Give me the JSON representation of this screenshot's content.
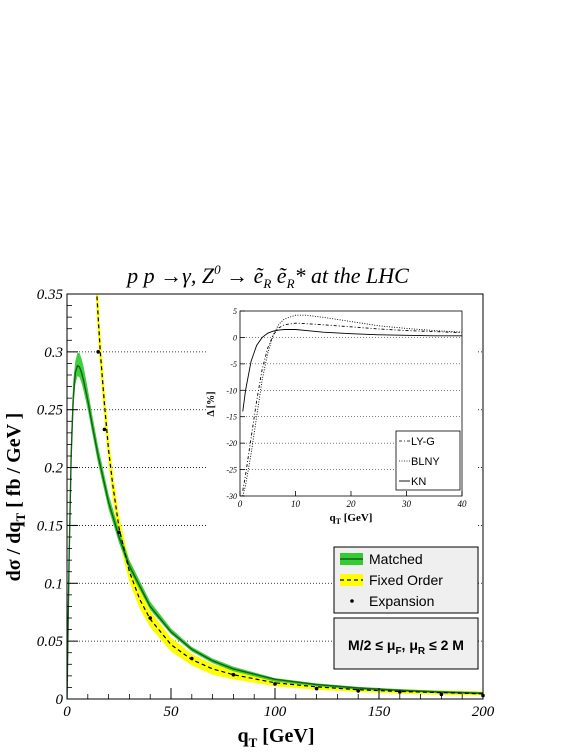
{
  "chart_data": [
    {
      "type": "line",
      "title": {
        "pre": "p p  →γ, Z",
        "sup0": "0",
        "mid": " → ",
        "e1": "ẽ",
        "sub1": "R",
        "e2": "ẽ",
        "sub2": "R",
        "post": "* at the LHC"
      },
      "xlabel": {
        "main": "q",
        "sub": "T",
        "rest": " [GeV]"
      },
      "ylabel": {
        "pre": "dσ / dq",
        "sub": "T",
        "rest": " [ fb / GeV ]"
      },
      "xlim": [
        0,
        200
      ],
      "ylim": [
        0,
        0.35
      ],
      "xticks": [
        0,
        50,
        100,
        150,
        200
      ],
      "xtick_labels": [
        "0",
        "50",
        "100",
        "150",
        "200"
      ],
      "yticks": [
        0,
        0.05,
        0.1,
        0.15,
        0.2,
        0.25,
        0.3,
        0.35
      ],
      "ytick_labels": [
        "0",
        "0.05",
        "0.1",
        "0.15",
        "0.2",
        "0.25",
        "0.3",
        "0.35"
      ],
      "grid": "horizontal dotted",
      "legend": {
        "placement": "right",
        "entries": [
          "Matched",
          "Fixed Order",
          "Expansion"
        ]
      },
      "scale_box": {
        "lead": "M/2",
        "le1": "≤",
        "mu": "μ",
        "mu_sub_F": "F",
        "comma": ", μ",
        "mu_sub_R": "R",
        "le2": "≤",
        "tail": "2 M"
      },
      "series": [
        {
          "name": "Matched",
          "style": "solid line with green band",
          "color": "#1a5c1a",
          "band_color": "#33cc33",
          "x": [
            0,
            1,
            2,
            3,
            4,
            5,
            6,
            7,
            8,
            10,
            12,
            15,
            20,
            25,
            30,
            40,
            50,
            60,
            70,
            80,
            100,
            120,
            140,
            160,
            180,
            200
          ],
          "y": [
            0,
            0.12,
            0.21,
            0.26,
            0.282,
            0.288,
            0.287,
            0.282,
            0.275,
            0.258,
            0.238,
            0.21,
            0.17,
            0.14,
            0.115,
            0.08,
            0.058,
            0.043,
            0.033,
            0.026,
            0.017,
            0.0125,
            0.0095,
            0.0075,
            0.006,
            0.005
          ],
          "band_low": [
            0,
            0.1,
            0.2,
            0.25,
            0.272,
            0.279,
            0.278,
            0.273,
            0.266,
            0.25,
            0.231,
            0.203,
            0.164,
            0.135,
            0.111,
            0.077,
            0.056,
            0.041,
            0.031,
            0.024,
            0.015,
            0.011,
            0.008,
            0.0065,
            0.005,
            0.004
          ],
          "band_high": [
            0,
            0.14,
            0.23,
            0.275,
            0.292,
            0.299,
            0.299,
            0.294,
            0.287,
            0.268,
            0.247,
            0.218,
            0.177,
            0.146,
            0.12,
            0.084,
            0.061,
            0.045,
            0.035,
            0.028,
            0.018,
            0.0135,
            0.0105,
            0.0085,
            0.007,
            0.006
          ]
        },
        {
          "name": "Fixed Order",
          "style": "dashed line with yellow band",
          "color": "#000000",
          "band_color": "#ffff00",
          "x": [
            14,
            15,
            16,
            18,
            20,
            22,
            25,
            30,
            35,
            40,
            50,
            60,
            70,
            80,
            100,
            120,
            140,
            160,
            180,
            200
          ],
          "y": [
            0.36,
            0.33,
            0.3,
            0.255,
            0.215,
            0.185,
            0.148,
            0.11,
            0.086,
            0.069,
            0.047,
            0.034,
            0.026,
            0.021,
            0.014,
            0.0105,
            0.008,
            0.0065,
            0.0055,
            0.0045
          ],
          "band_low": [
            0.34,
            0.31,
            0.283,
            0.24,
            0.202,
            0.173,
            0.137,
            0.101,
            0.078,
            0.062,
            0.041,
            0.029,
            0.021,
            0.017,
            0.011,
            0.008,
            0.006,
            0.0045,
            0.0035,
            0.003
          ],
          "band_high": [
            0.38,
            0.35,
            0.318,
            0.27,
            0.228,
            0.197,
            0.159,
            0.119,
            0.094,
            0.076,
            0.053,
            0.039,
            0.03,
            0.025,
            0.017,
            0.013,
            0.01,
            0.0085,
            0.0075,
            0.0065
          ]
        },
        {
          "name": "Expansion",
          "style": "points",
          "color": "#000000",
          "x": [
            15,
            18,
            25,
            40,
            60,
            80,
            100,
            120,
            140,
            160,
            180,
            200
          ],
          "y": [
            0.3,
            0.233,
            0.144,
            0.07,
            0.035,
            0.021,
            0.013,
            0.009,
            0.007,
            0.006,
            0.004,
            0.003
          ]
        }
      ]
    },
    {
      "type": "line",
      "panel": "inset",
      "xlabel": {
        "main": "q",
        "sub": "T",
        "rest": " [GeV]"
      },
      "ylabel": "Δ [%]",
      "xlim": [
        0,
        40
      ],
      "ylim": [
        -30,
        5
      ],
      "xticks": [
        0,
        10,
        20,
        30,
        40
      ],
      "xtick_labels": [
        "0",
        "10",
        "20",
        "30",
        "40"
      ],
      "yticks": [
        -30,
        -25,
        -20,
        -15,
        -10,
        -5,
        0,
        5
      ],
      "ytick_labels": [
        "-30",
        "-25",
        "-20",
        "-15",
        "-10",
        "-5",
        "0",
        "5"
      ],
      "grid": "horizontal dotted",
      "legend": {
        "placement": "bottom-right",
        "entries": [
          "LY-G",
          "BLNY",
          "KN"
        ]
      },
      "series": [
        {
          "name": "LY-G",
          "style": "dash-dot",
          "color": "#000000",
          "x": [
            0.5,
            1,
            2,
            3,
            4,
            5,
            6,
            7,
            8,
            10,
            12,
            15,
            20,
            25,
            30,
            35,
            40
          ],
          "y": [
            -29,
            -26,
            -19,
            -12,
            -6,
            -2,
            0.5,
            1.8,
            2.4,
            2.7,
            2.6,
            2.4,
            2.0,
            1.6,
            1.3,
            1.1,
            0.9
          ]
        },
        {
          "name": "BLNY",
          "style": "dotted",
          "color": "#000000",
          "x": [
            0.5,
            1,
            2,
            3,
            4,
            5,
            6,
            7,
            8,
            10,
            12,
            15,
            20,
            25,
            30,
            35,
            40
          ],
          "y": [
            -30,
            -28,
            -22,
            -15,
            -8,
            -3,
            0.5,
            2.5,
            3.5,
            4.2,
            4.2,
            3.8,
            3.0,
            2.2,
            1.7,
            1.3,
            1.0
          ]
        },
        {
          "name": "KN",
          "style": "solid",
          "color": "#000000",
          "x": [
            0.5,
            1,
            2,
            3,
            4,
            5,
            6,
            7,
            8,
            10,
            12,
            15,
            20,
            25,
            30,
            35,
            40
          ],
          "y": [
            -14,
            -10,
            -4.5,
            -1.5,
            0,
            0.8,
            1.2,
            1.4,
            1.5,
            1.5,
            1.3,
            1.0,
            0.7,
            0.5,
            0.4,
            0.3,
            0.3
          ]
        }
      ]
    }
  ]
}
